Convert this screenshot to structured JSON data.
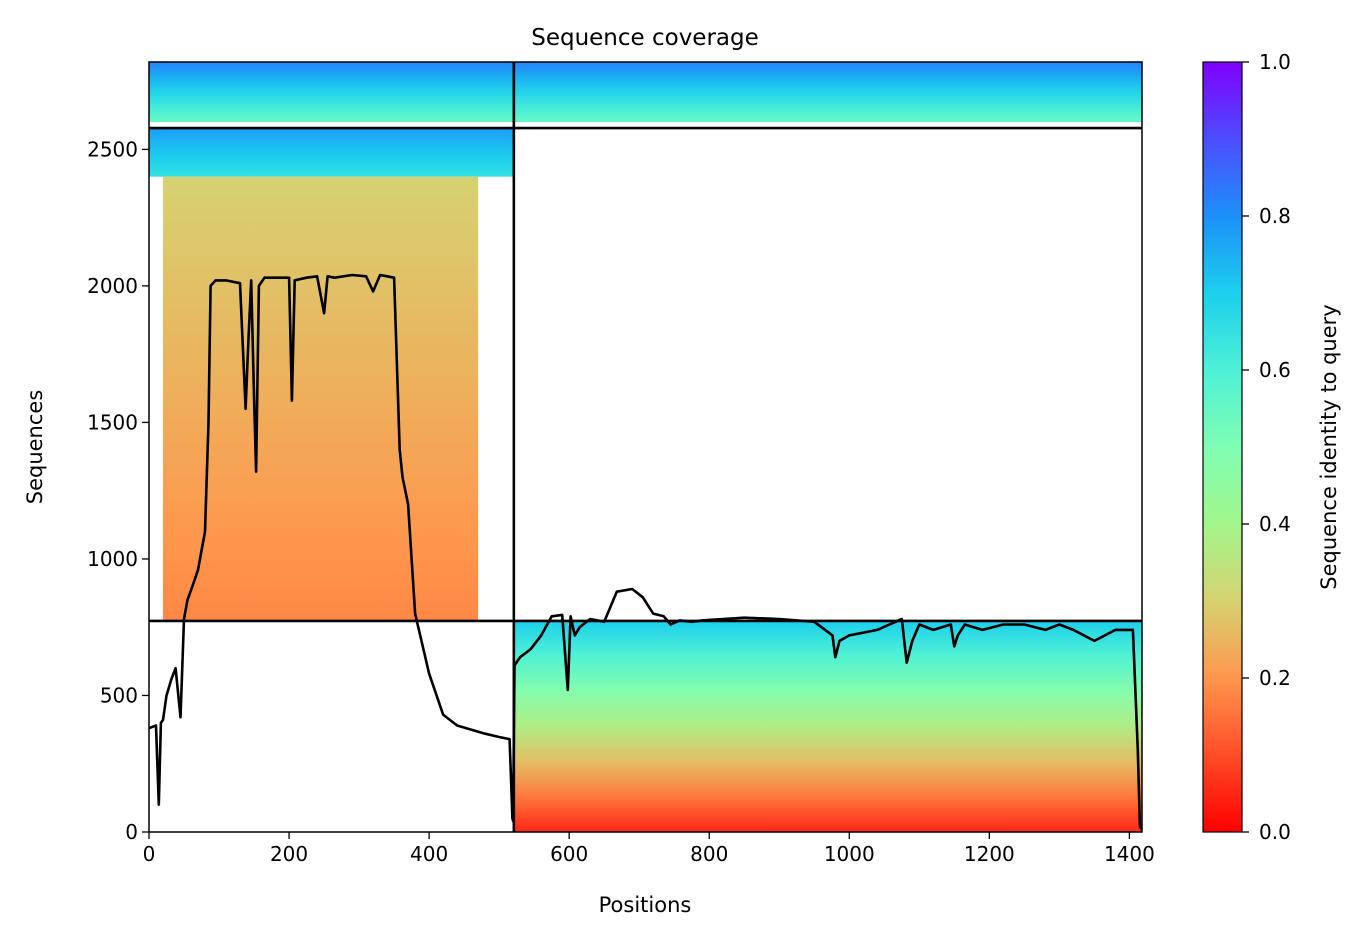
{
  "chart_data": {
    "type": "heatmap",
    "title": "Sequence coverage",
    "xlabel": "Positions",
    "ylabel": "Sequences",
    "xlim": [
      0,
      1418
    ],
    "ylim": [
      0,
      2820
    ],
    "x_ticks": [
      0,
      200,
      400,
      600,
      800,
      1000,
      1200,
      1400
    ],
    "y_ticks": [
      0,
      500,
      1000,
      1500,
      2000,
      2500
    ],
    "colorbar": {
      "label": "Sequence identity to query",
      "range": [
        0,
        1
      ],
      "ticks": [
        0.0,
        0.2,
        0.4,
        0.6,
        0.8,
        1.0
      ],
      "tick_labels": [
        "0.0",
        "0.2",
        "0.4",
        "0.6",
        "0.8",
        "1.0"
      ],
      "colormap": "rainbow_r"
    },
    "grid": false,
    "legend": "none",
    "divider_lines": {
      "x": [
        521
      ],
      "y": [
        773,
        2578
      ]
    },
    "coverage_blocks": [
      {
        "name": "A",
        "x": [
          0,
          521
        ],
        "y": [
          2600,
          2820
        ],
        "identity": [
          0.55,
          0.82
        ]
      },
      {
        "name": "B",
        "x": [
          521,
          1418
        ],
        "y": [
          2600,
          2820
        ],
        "identity": [
          0.55,
          0.82
        ]
      },
      {
        "name": "C",
        "x": [
          0,
          521
        ],
        "y": [
          2400,
          2578
        ],
        "identity": [
          0.65,
          0.78
        ]
      },
      {
        "name": "D",
        "x": [
          20,
          470
        ],
        "y": [
          773,
          2400
        ],
        "identity": [
          0.18,
          0.3
        ]
      },
      {
        "name": "E",
        "x": [
          521,
          1418
        ],
        "y": [
          0,
          773
        ],
        "identity": [
          0.05,
          0.7
        ]
      }
    ],
    "coverage_line": {
      "x": [
        0,
        10,
        14,
        17,
        20,
        25,
        32,
        38,
        45,
        50,
        55,
        62,
        70,
        80,
        85,
        88,
        95,
        110,
        130,
        138,
        142,
        146,
        150,
        153,
        157,
        165,
        180,
        200,
        204,
        208,
        225,
        240,
        250,
        255,
        265,
        290,
        310,
        320,
        330,
        340,
        350,
        358,
        362,
        370,
        380,
        400,
        420,
        440,
        460,
        480,
        500,
        515,
        519,
        520,
        522,
        530,
        545,
        560,
        575,
        590,
        598,
        602,
        608,
        615,
        630,
        650,
        668,
        690,
        705,
        720,
        735,
        745,
        758,
        775,
        790,
        820,
        850,
        900,
        950,
        976,
        980,
        986,
        1000,
        1040,
        1075,
        1082,
        1090,
        1100,
        1120,
        1145,
        1150,
        1155,
        1165,
        1190,
        1220,
        1250,
        1280,
        1300,
        1320,
        1350,
        1380,
        1405,
        1412,
        1415,
        1418
      ],
      "y": [
        380,
        390,
        100,
        400,
        410,
        500,
        560,
        600,
        420,
        780,
        850,
        900,
        960,
        1100,
        1500,
        2000,
        2020,
        2020,
        2010,
        1550,
        1800,
        2020,
        1600,
        1320,
        2000,
        2030,
        2030,
        2030,
        1580,
        2020,
        2030,
        2035,
        1900,
        2035,
        2030,
        2040,
        2035,
        1980,
        2040,
        2035,
        2030,
        1400,
        1300,
        1200,
        800,
        580,
        430,
        390,
        375,
        360,
        348,
        340,
        50,
        40,
        610,
        640,
        670,
        720,
        790,
        795,
        520,
        790,
        720,
        750,
        780,
        770,
        880,
        890,
        860,
        800,
        790,
        760,
        775,
        770,
        775,
        780,
        785,
        780,
        770,
        720,
        640,
        700,
        720,
        740,
        780,
        620,
        700,
        760,
        740,
        760,
        680,
        720,
        760,
        740,
        760,
        760,
        740,
        760,
        740,
        700,
        740,
        740,
        300,
        20,
        10
      ]
    }
  }
}
